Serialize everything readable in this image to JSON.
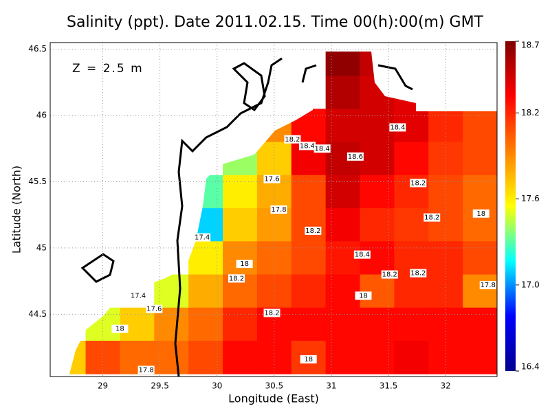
{
  "chart_data": {
    "type": "contour",
    "title": "Salinity (ppt). Date 2011.02.15. Time 00(h):00(m) GMT",
    "annotation": "Z = 2.5 m",
    "xlabel": "Longitude (East)",
    "ylabel": "Latitude (North)",
    "xlim": [
      28.54,
      32.45
    ],
    "ylim": [
      44.03,
      46.55
    ],
    "xticks": [
      29,
      29.5,
      30,
      30.5,
      31,
      31.5,
      32
    ],
    "yticks": [
      44.5,
      45,
      45.5,
      46,
      46.5
    ],
    "grid": true,
    "colormap": [
      "#00008f",
      "#0000ff",
      "#00ffff",
      "#ffff00",
      "#ff7f00",
      "#ff0000",
      "#800000"
    ],
    "clim": [
      16.4,
      18.7
    ],
    "cticks": [
      16.4,
      {
        "value": 17,
        "label": "17.0"
      },
      17.6,
      18.2,
      18.7
    ],
    "field": {
      "lon": [
        28.7,
        29.0,
        29.3,
        29.6,
        29.9,
        30.2,
        30.5,
        30.8,
        31.1,
        31.4,
        31.7,
        32.0,
        32.3
      ],
      "lat": [
        46.425,
        46.175,
        45.925,
        45.675,
        45.425,
        45.175,
        44.925,
        44.675,
        44.425,
        44.175
      ],
      "values": [
        [
          null,
          null,
          null,
          null,
          null,
          null,
          null,
          null,
          18.65,
          18.5,
          null,
          null,
          null
        ],
        [
          null,
          null,
          null,
          null,
          null,
          null,
          null,
          null,
          18.55,
          18.45,
          18.4,
          null,
          null
        ],
        [
          null,
          null,
          null,
          null,
          null,
          null,
          17.9,
          18.3,
          18.45,
          18.45,
          18.4,
          18.2,
          18.1
        ],
        [
          null,
          null,
          null,
          null,
          null,
          17.4,
          17.7,
          18.35,
          18.5,
          18.45,
          18.3,
          18.15,
          18.1
        ],
        [
          null,
          null,
          null,
          null,
          17.3,
          17.6,
          17.8,
          18.1,
          18.45,
          18.3,
          18.2,
          18.1,
          18.0
        ],
        [
          null,
          null,
          null,
          null,
          17.1,
          17.7,
          17.85,
          18.1,
          18.35,
          18.2,
          18.15,
          18.1,
          18.0
        ],
        [
          null,
          null,
          null,
          null,
          17.6,
          17.9,
          18.0,
          18.1,
          18.25,
          18.3,
          18.2,
          18.2,
          18.1
        ],
        [
          null,
          null,
          null,
          17.5,
          17.8,
          18.0,
          18.1,
          18.2,
          18.3,
          18.05,
          18.2,
          18.2,
          17.9
        ],
        [
          null,
          17.5,
          17.7,
          17.9,
          18.0,
          18.2,
          18.3,
          18.3,
          18.3,
          18.3,
          18.3,
          18.3,
          18.3
        ],
        [
          17.7,
          18.1,
          18.0,
          18.0,
          18.1,
          18.3,
          18.3,
          18.15,
          18.3,
          18.3,
          18.35,
          18.3,
          18.3
        ]
      ]
    },
    "contour_labels": {
      "x": [
        30.66,
        30.79,
        30.92,
        31.58,
        31.21,
        30.48,
        31.76,
        30.54,
        31.88,
        32.31,
        30.84,
        29.87,
        31.27,
        30.24,
        30.17,
        31.51,
        31.76,
        32.37,
        31.28,
        29.31,
        29.45,
        30.48,
        29.15,
        30.8,
        29.38
      ],
      "y": [
        45.82,
        45.77,
        45.75,
        45.91,
        45.69,
        45.52,
        45.49,
        45.29,
        45.23,
        45.26,
        45.13,
        45.08,
        44.95,
        44.88,
        44.77,
        44.8,
        44.81,
        44.72,
        44.64,
        44.64,
        44.54,
        44.51,
        44.39,
        44.16,
        44.08
      ],
      "values": [
        18.2,
        18.4,
        18.4,
        18.4,
        18.6,
        17.6,
        18.2,
        17.8,
        18.2,
        18,
        18.2,
        17.4,
        18.4,
        18,
        18.2,
        18.2,
        18.2,
        17.8,
        18,
        17.4,
        17.6,
        18.2,
        18,
        18,
        17.8
      ]
    }
  }
}
